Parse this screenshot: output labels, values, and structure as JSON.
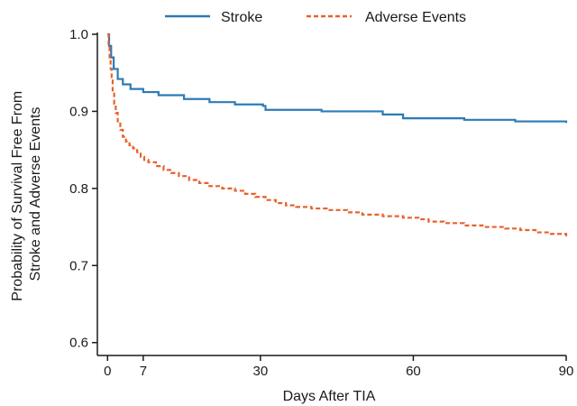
{
  "chart_data": {
    "type": "line",
    "xlabel": "Days After TIA",
    "ylabel_lines": [
      "Probability of Survival Free From",
      "Stroke and Adverse Events"
    ],
    "xlim": [
      -2,
      90
    ],
    "ylim": [
      0.595,
      1.0
    ],
    "x_ticks": [
      0,
      7,
      30,
      60,
      90
    ],
    "y_ticks": [
      0.6,
      0.7,
      0.8,
      0.9,
      1.0
    ],
    "y_tick_labels": [
      "0.6",
      "0.7",
      "0.8",
      "0.9",
      "1.0"
    ],
    "grid": false,
    "legend_position": "top-center",
    "series": [
      {
        "name": "Stroke",
        "color": "#2c7bb6",
        "dash": "solid",
        "x": [
          0,
          0.3,
          0.7,
          1.2,
          2,
          3,
          4.5,
          7,
          10,
          15,
          20,
          25,
          30.5,
          31,
          41,
          42,
          53,
          54,
          57,
          58,
          64,
          70,
          80,
          90
        ],
        "y": [
          1.0,
          0.985,
          0.97,
          0.955,
          0.942,
          0.935,
          0.929,
          0.925,
          0.921,
          0.916,
          0.912,
          0.909,
          0.907,
          0.902,
          0.902,
          0.9,
          0.9,
          0.896,
          0.896,
          0.891,
          0.891,
          0.889,
          0.887,
          0.885
        ]
      },
      {
        "name": "Adverse Events",
        "color": "#e8612c",
        "dash": "dashed",
        "x": [
          0,
          0.2,
          0.4,
          0.6,
          0.8,
          1.0,
          1.3,
          1.6,
          2.0,
          2.5,
          3.0,
          3.6,
          4.3,
          5.0,
          5.8,
          6.5,
          7.2,
          8.0,
          9.5,
          11,
          12.5,
          14,
          16,
          18,
          20,
          22.5,
          25,
          27,
          29,
          31,
          33,
          35,
          37,
          40,
          43,
          47,
          50,
          54,
          58,
          61,
          63,
          66,
          70,
          74,
          78,
          81,
          84,
          87,
          90
        ],
        "y": [
          1.0,
          0.985,
          0.97,
          0.955,
          0.94,
          0.925,
          0.91,
          0.898,
          0.887,
          0.876,
          0.867,
          0.861,
          0.856,
          0.852,
          0.847,
          0.841,
          0.837,
          0.834,
          0.829,
          0.824,
          0.82,
          0.816,
          0.811,
          0.807,
          0.803,
          0.8,
          0.797,
          0.793,
          0.789,
          0.785,
          0.781,
          0.778,
          0.776,
          0.774,
          0.772,
          0.769,
          0.766,
          0.764,
          0.762,
          0.76,
          0.757,
          0.755,
          0.752,
          0.75,
          0.748,
          0.746,
          0.743,
          0.741,
          0.738
        ]
      }
    ]
  }
}
